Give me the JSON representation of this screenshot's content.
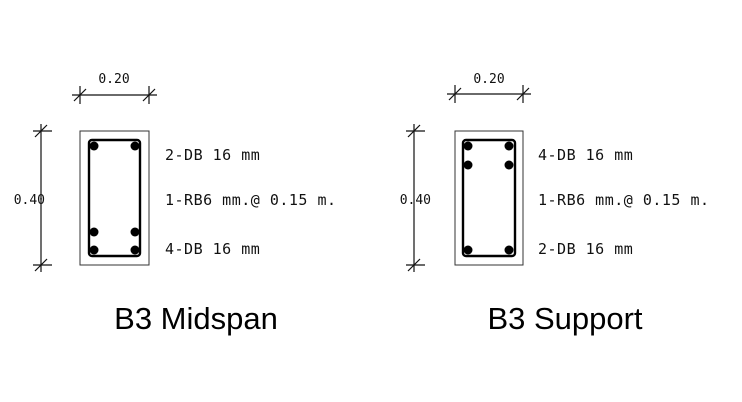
{
  "sections": [
    {
      "caption": "B3 Midspan",
      "width_label": "0.20",
      "height_label": "0.40",
      "top_rebar": "2-DB 16 mm",
      "stirrup": "1-RB6 mm.@ 0.15 m.",
      "bottom_rebar": "4-DB 16 mm"
    },
    {
      "caption": "B3 Support",
      "width_label": "0.20",
      "height_label": "0.40",
      "top_rebar": "4-DB 16 mm",
      "stirrup": "1-RB6 mm.@ 0.15 m.",
      "bottom_rebar": "2-DB 16 mm"
    }
  ]
}
